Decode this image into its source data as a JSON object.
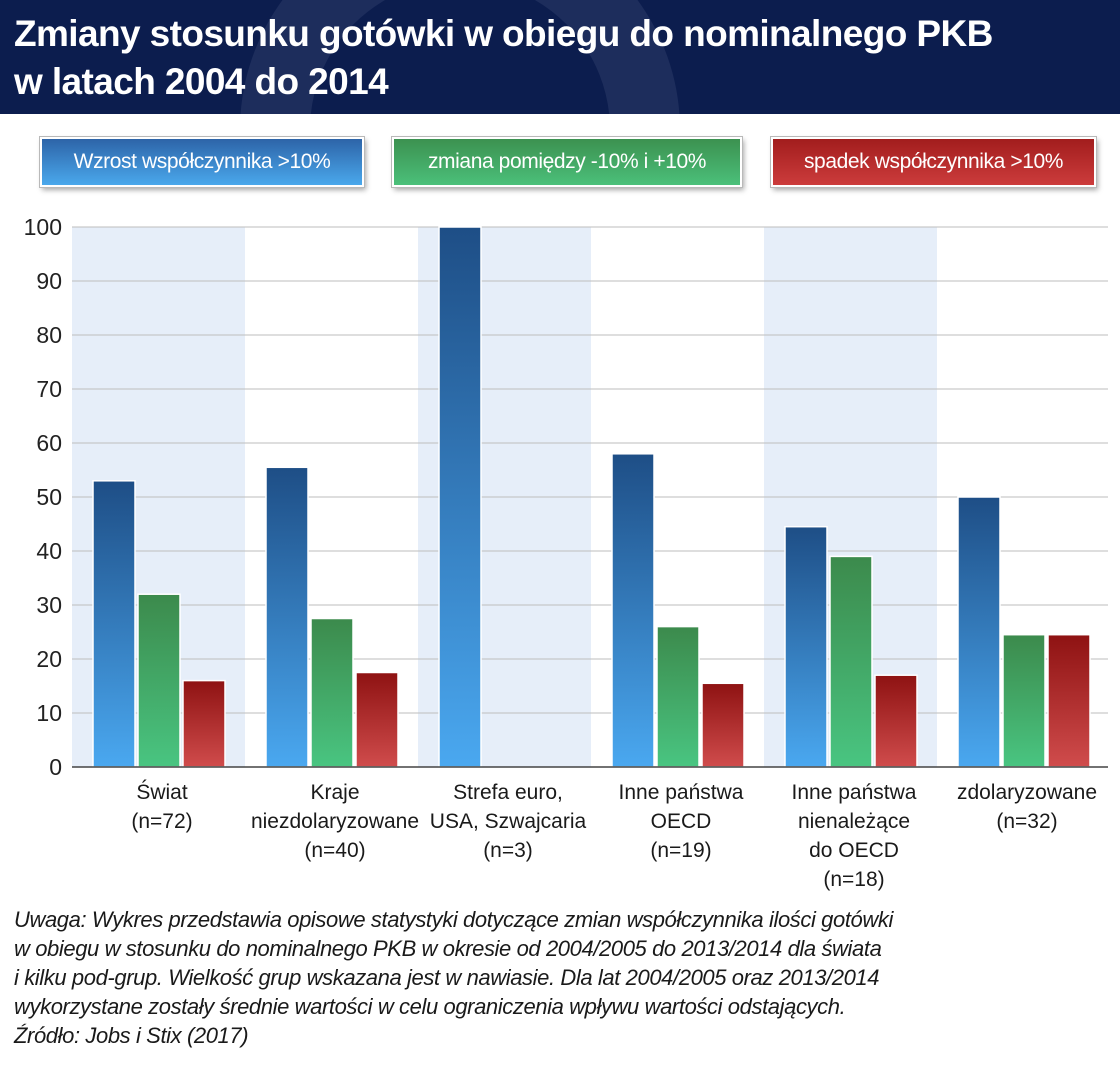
{
  "header": {
    "title_line1": "Zmiany stosunku gotówki w obiegu do nominalnego PKB",
    "title_line2": "w latach 2004 do 2014"
  },
  "legend": {
    "increase": "Wzrost współczynnika >10%",
    "change": "zmiana pomiędzy -10% i +10%",
    "decrease": "spadek współczynnika >10%"
  },
  "colors": {
    "header_bg": "#0c1d4e",
    "blue_top": "#1e4e86",
    "blue_bottom": "#4aa8f0",
    "green_top": "#3c8a4c",
    "green_bottom": "#49c581",
    "red_top": "#8e1212",
    "red_bottom": "#d04c4c",
    "band": "#e6eef9",
    "grid": "#bdbdbd"
  },
  "chart_data": {
    "type": "bar",
    "categories": [
      [
        "Świat",
        "(n=72)"
      ],
      [
        "Kraje",
        "niezdolaryzowane",
        "(n=40)"
      ],
      [
        "Strefa euro,",
        "USA, Szwajcaria",
        "(n=3)"
      ],
      [
        "Inne państwa",
        "OECD",
        "(n=19)"
      ],
      [
        "Inne państwa",
        "nienależące",
        "do OECD",
        "(n=18)"
      ],
      [
        "zdolaryzowane",
        "(n=32)"
      ]
    ],
    "series": [
      {
        "name": "Wzrost współczynnika >10%",
        "values": [
          53,
          55.5,
          100,
          58,
          44.5,
          50
        ]
      },
      {
        "name": "zmiana pomiędzy -10% i +10%",
        "values": [
          32,
          27.5,
          0,
          26,
          39,
          24.5
        ]
      },
      {
        "name": "spadek współczynnika >10%",
        "values": [
          16,
          17.5,
          0,
          15.5,
          17,
          24.5
        ]
      }
    ],
    "yticks": [
      0,
      10,
      20,
      30,
      40,
      50,
      60,
      70,
      80,
      90,
      100
    ],
    "ylim": [
      0,
      100
    ],
    "xlabel": "",
    "ylabel": "",
    "grid": true,
    "legend": "top"
  },
  "note": {
    "line1": "Uwaga: Wykres przedstawia opisowe statystyki dotyczące zmian współczynnika ilości gotówki",
    "line2": "w obiegu w stosunku do nominalnego PKB w okresie od 2004/2005 do 2013/2014 dla świata",
    "line3": "i kilku pod-grup. Wielkość grup wskazana jest w nawiasie. Dla lat 2004/2005 oraz 2013/2014",
    "line4": "wykorzystane zostały średnie wartości w celu ograniczenia wpływu wartości odstających.",
    "source": "Źródło: Jobs i Stix (2017)"
  }
}
